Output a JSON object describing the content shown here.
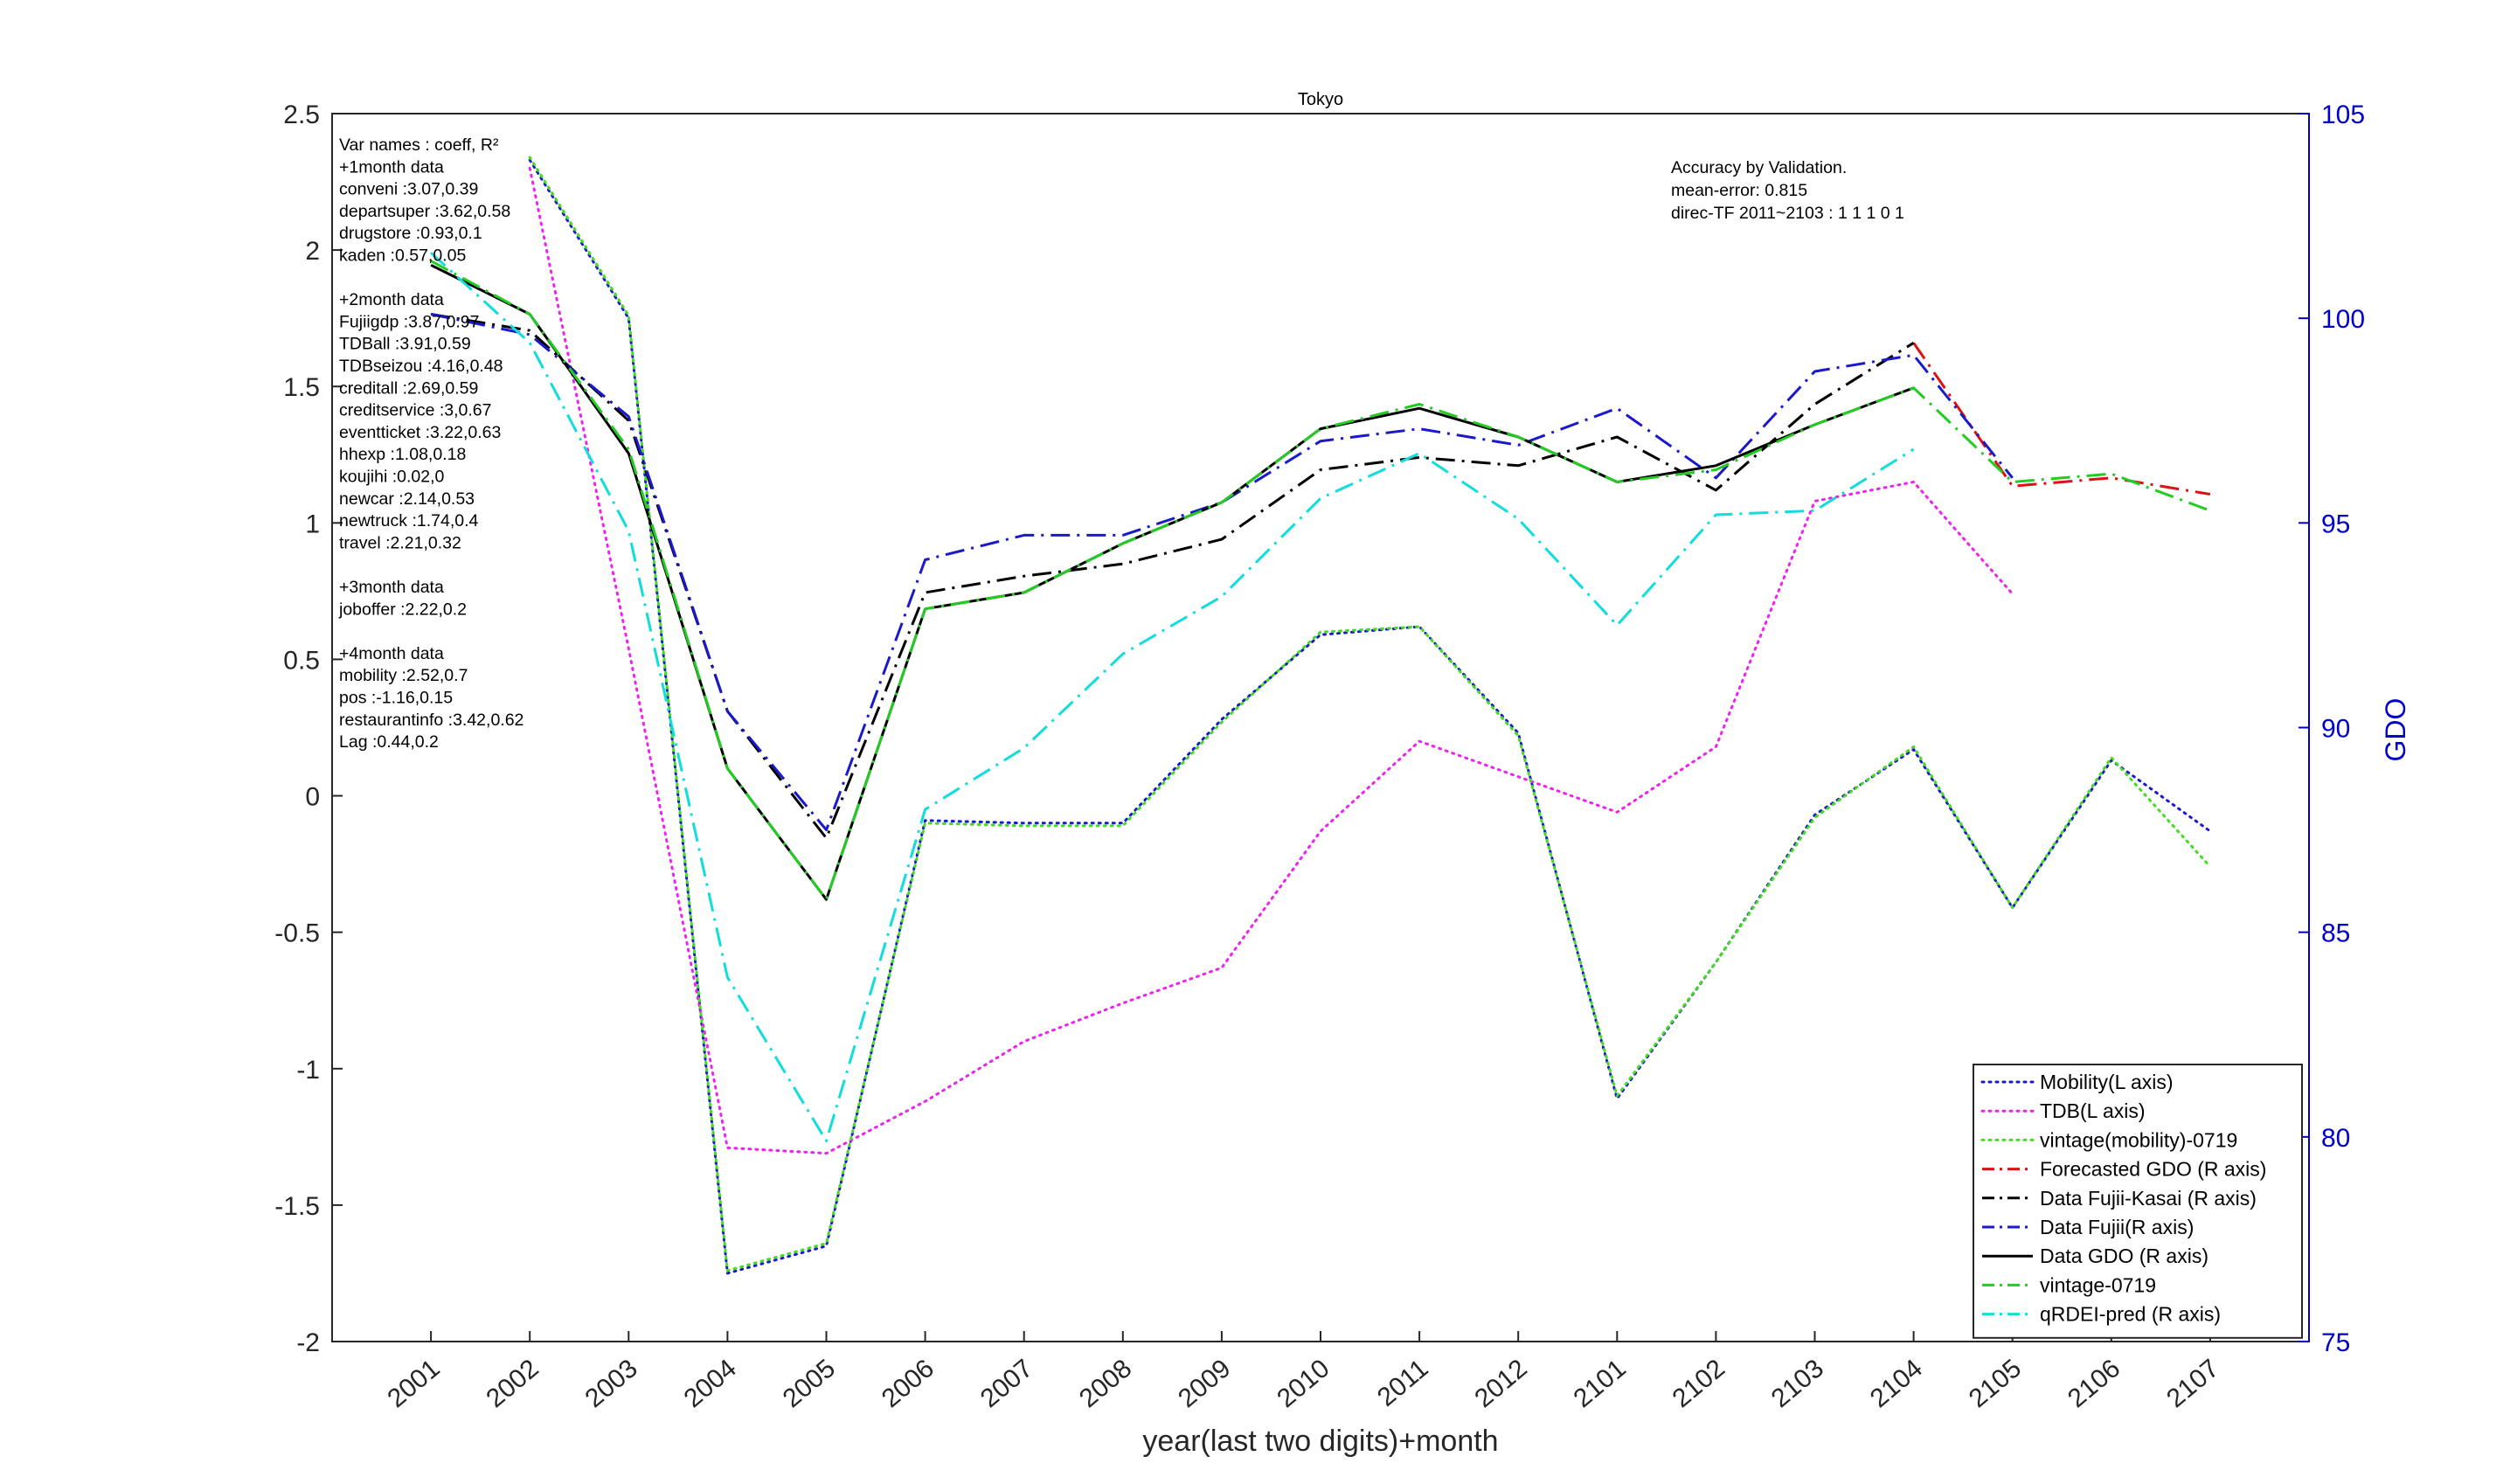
{
  "chart_data": {
    "type": "line",
    "title": "Tokyo",
    "xlabel": "year(last two digits)+month",
    "ylabel_left": "",
    "ylabel_right": "GDO",
    "categories": [
      "2001",
      "2002",
      "2003",
      "2004",
      "2005",
      "2006",
      "2007",
      "2008",
      "2009",
      "2010",
      "2011",
      "2012",
      "2101",
      "2102",
      "2103",
      "2104",
      "2105",
      "2106",
      "2107"
    ],
    "y_left": {
      "lim": [
        -2,
        2.5
      ],
      "ticks": [
        "-2",
        "-1.5",
        "-1",
        "-0.5",
        "0",
        "0.5",
        "1",
        "1.5",
        "2",
        "2.5"
      ]
    },
    "y_right": {
      "lim": [
        75,
        105
      ],
      "ticks": [
        "75",
        "80",
        "85",
        "90",
        "95",
        "100",
        "105"
      ],
      "color": "#0000cc"
    },
    "grid": false,
    "legend_position": "bottom-right",
    "series": [
      {
        "name": "Mobility(L axis)",
        "axis": "left",
        "color": "#1a1acc",
        "style": "dotted",
        "values": [
          null,
          2.33,
          1.75,
          -1.75,
          -1.65,
          -0.09,
          -0.1,
          -0.1,
          0.28,
          0.59,
          0.62,
          0.23,
          -1.11,
          -0.61,
          -0.07,
          0.17,
          -0.41,
          0.13,
          -0.13
        ]
      },
      {
        "name": "TDB(L axis)",
        "axis": "left",
        "color": "#ee22ee",
        "style": "dotted",
        "values": [
          null,
          2.3,
          0.54,
          -1.29,
          -1.31,
          -1.12,
          -0.9,
          -0.76,
          -0.63,
          -0.13,
          0.2,
          0.07,
          -0.06,
          0.18,
          1.08,
          1.15,
          0.74,
          null,
          null
        ]
      },
      {
        "name": "vintage(mobility)-0719",
        "axis": "left",
        "color": "#44dd22",
        "style": "dotted",
        "values": [
          null,
          2.34,
          1.76,
          -1.74,
          -1.64,
          -0.1,
          -0.11,
          -0.11,
          0.27,
          0.6,
          0.62,
          0.22,
          -1.1,
          -0.61,
          -0.08,
          0.18,
          -0.41,
          0.14,
          -0.26
        ]
      },
      {
        "name": "Forecasted GDO (R axis)",
        "axis": "right",
        "color": "#dd1111",
        "style": "dashdot",
        "values": [
          null,
          null,
          null,
          null,
          null,
          null,
          null,
          null,
          null,
          null,
          null,
          null,
          null,
          null,
          null,
          99.4,
          95.9,
          96.1,
          95.7
        ]
      },
      {
        "name": "Data Fujii-Kasai (R axis)",
        "axis": "right",
        "color": "#000000",
        "style": "dashdot",
        "values": [
          100.1,
          99.7,
          97.5,
          90.4,
          87.3,
          93.3,
          93.7,
          94.0,
          94.6,
          96.3,
          96.6,
          96.4,
          97.1,
          95.8,
          97.9,
          99.4,
          null,
          null,
          null
        ]
      },
      {
        "name": "Data Fujii(R axis)",
        "axis": "right",
        "color": "#1a1acc",
        "style": "dashdot",
        "values": [
          100.1,
          99.6,
          97.6,
          90.4,
          87.5,
          94.1,
          94.7,
          94.7,
          95.5,
          97.0,
          97.3,
          96.9,
          97.8,
          96.1,
          98.7,
          99.1,
          96.1,
          null,
          null
        ]
      },
      {
        "name": "Data GDO (R axis)",
        "axis": "right",
        "color": "#000000",
        "style": "solid",
        "values": [
          101.3,
          100.1,
          96.7,
          89.0,
          85.8,
          92.9,
          93.3,
          94.5,
          95.5,
          97.3,
          97.8,
          97.1,
          96.0,
          96.4,
          97.4,
          98.3,
          null,
          null,
          null
        ]
      },
      {
        "name": "vintage-0719",
        "axis": "right",
        "color": "#22cc22",
        "style": "dashdot",
        "values": [
          101.4,
          100.1,
          96.8,
          89.0,
          85.8,
          92.9,
          93.3,
          94.5,
          95.5,
          97.3,
          97.9,
          97.1,
          96.0,
          96.3,
          97.4,
          98.3,
          96.0,
          96.2,
          95.3
        ]
      },
      {
        "name": "qRDEI-pred (R axis)",
        "axis": "right",
        "color": "#11dddd",
        "style": "dashdot",
        "values": [
          101.6,
          99.4,
          94.8,
          83.9,
          79.9,
          88.0,
          89.5,
          91.8,
          93.2,
          95.6,
          96.7,
          95.1,
          92.5,
          95.2,
          95.3,
          96.8,
          null,
          null,
          null
        ]
      }
    ],
    "annotations": {
      "var_names": [
        "Var names : coeff, R²",
        "+1month data",
        "conveni :3.07,0.39",
        "departsuper :3.62,0.58",
        "drugstore :0.93,0.1",
        "kaden :0.57,0.05",
        "",
        "+2month data",
        "Fujiigdp :3.87,0.97",
        "TDBall :3.91,0.59",
        "TDBseizou :4.16,0.48",
        "creditall :2.69,0.59",
        "creditservice :3,0.67",
        "eventticket :3.22,0.63",
        "hhexp :1.08,0.18",
        "koujihi :0.02,0",
        "newcar :2.14,0.53",
        "newtruck :1.74,0.4",
        "travel :2.21,0.32",
        "",
        "+3month data",
        "joboffer :2.22,0.2",
        "",
        "+4month data",
        "mobility :2.52,0.7",
        "pos :-1.16,0.15",
        "restaurantinfo :3.42,0.62",
        "Lag :0.44,0.2"
      ],
      "accuracy": [
        "Accuracy by Validation.",
        "mean-error: 0.815",
        "direc-TF 2011~2103 : 1  1  1  0  1"
      ]
    }
  }
}
